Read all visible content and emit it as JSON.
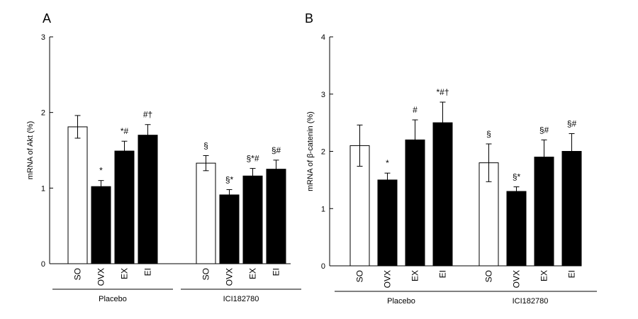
{
  "chart_data": [
    {
      "type": "bar",
      "panel": "A",
      "ylabel": "mRNA of Akt (%)",
      "ylim": [
        0,
        3
      ],
      "yticks": [
        "0",
        "1",
        "2",
        "3"
      ],
      "groups": [
        {
          "name": "Placebo",
          "categories": [
            "SO",
            "OVX",
            "EX",
            "EI"
          ],
          "values": [
            1.81,
            1.02,
            1.49,
            1.7
          ],
          "errors": [
            0.15,
            0.08,
            0.13,
            0.14
          ],
          "annotations": [
            "",
            "*",
            "*#",
            "#†"
          ],
          "fills": [
            "#ffffff",
            "#000000",
            "#000000",
            "#000000"
          ]
        },
        {
          "name": "ICI182780",
          "categories": [
            "SO",
            "OVX",
            "EX",
            "EI"
          ],
          "values": [
            1.33,
            0.91,
            1.16,
            1.25
          ],
          "errors": [
            0.1,
            0.07,
            0.1,
            0.12
          ],
          "annotations": [
            "§",
            "§*",
            "§*#",
            "§#"
          ],
          "fills": [
            "#ffffff",
            "#000000",
            "#000000",
            "#000000"
          ]
        }
      ]
    },
    {
      "type": "bar",
      "panel": "B",
      "ylabel": "mRNA of β-catenin (%)",
      "ylim": [
        0,
        4
      ],
      "yticks": [
        "0",
        "1",
        "2",
        "3",
        "4"
      ],
      "groups": [
        {
          "name": "Placebo",
          "categories": [
            "SO",
            "OVX",
            "EX",
            "EI"
          ],
          "values": [
            2.1,
            1.5,
            2.2,
            2.5
          ],
          "errors": [
            0.36,
            0.12,
            0.35,
            0.36
          ],
          "annotations": [
            "",
            "*",
            "#",
            "*#†"
          ],
          "fills": [
            "#ffffff",
            "#000000",
            "#000000",
            "#000000"
          ]
        },
        {
          "name": "ICI182780",
          "categories": [
            "SO",
            "OVX",
            "EX",
            "EI"
          ],
          "values": [
            1.8,
            1.3,
            1.9,
            2.0
          ],
          "errors": [
            0.33,
            0.08,
            0.3,
            0.31
          ],
          "annotations": [
            "§",
            "§*",
            "§#",
            "§#"
          ],
          "fills": [
            "#ffffff",
            "#000000",
            "#000000",
            "#000000"
          ]
        }
      ]
    }
  ]
}
